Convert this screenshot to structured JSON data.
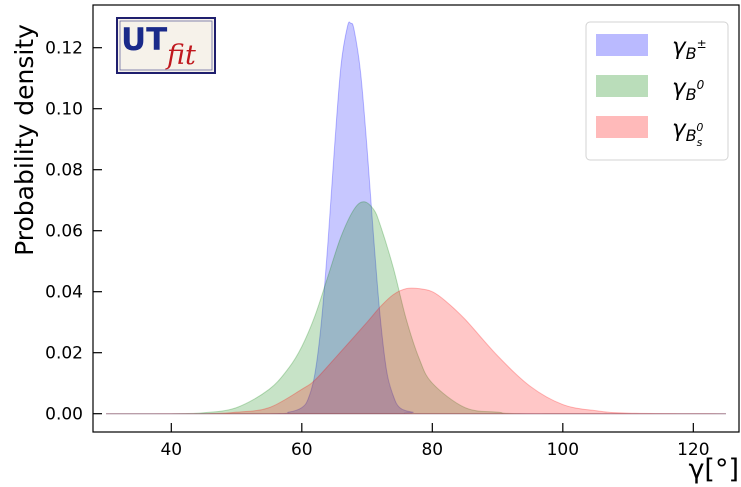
{
  "logo": {
    "text_main": "UT",
    "text_sub": "fit"
  },
  "chart_data": {
    "type": "area",
    "xlabel": "γ[°]",
    "ylabel": "Probability density",
    "xlim": [
      28,
      127
    ],
    "ylim": [
      -0.006,
      0.134
    ],
    "xticks": [
      40,
      60,
      80,
      100,
      120
    ],
    "yticks": [
      0.0,
      0.02,
      0.04,
      0.06,
      0.08,
      0.1,
      0.12
    ],
    "grid": false,
    "legend_position": "top-right",
    "series": [
      {
        "name": "γ_{B±}",
        "name_base": "γ",
        "name_sub": "B",
        "name_sup": "±",
        "color": "#0000ff",
        "fill_opacity": 0.22,
        "x": [
          30,
          55,
          58,
          60,
          61,
          62,
          63,
          64,
          65,
          66,
          67,
          67.5,
          68,
          69,
          70,
          71,
          72,
          73,
          74,
          75,
          77,
          80,
          125
        ],
        "y": [
          0,
          0,
          0.0005,
          0.002,
          0.005,
          0.013,
          0.03,
          0.056,
          0.087,
          0.114,
          0.127,
          0.128,
          0.126,
          0.112,
          0.087,
          0.058,
          0.032,
          0.014,
          0.006,
          0.002,
          0.0005,
          0,
          0
        ]
      },
      {
        "name": "γ_{B0}",
        "name_base": "γ",
        "name_sub": "B",
        "name_sup": "0",
        "color": "#008000",
        "fill_opacity": 0.22,
        "x": [
          30,
          40,
          45,
          50,
          55,
          58,
          60,
          62,
          64,
          66,
          68,
          69.5,
          71,
          72,
          74,
          76,
          78,
          80,
          85,
          90,
          95,
          125
        ],
        "y": [
          0,
          0,
          0.0003,
          0.002,
          0.008,
          0.015,
          0.022,
          0.032,
          0.045,
          0.058,
          0.067,
          0.0695,
          0.067,
          0.062,
          0.048,
          0.031,
          0.018,
          0.01,
          0.002,
          0.0005,
          0,
          0
        ]
      },
      {
        "name": "γ_{B0s}",
        "name_base": "γ",
        "name_sub": "B",
        "name_sup": "0",
        "name_subsub": "s",
        "color": "#ff0000",
        "fill_opacity": 0.22,
        "x": [
          30,
          45,
          50,
          55,
          60,
          62,
          65,
          70,
          72,
          74,
          76,
          78,
          80,
          82,
          85,
          90,
          95,
          100,
          105,
          110,
          125
        ],
        "y": [
          0,
          0,
          0.0005,
          0.002,
          0.008,
          0.011,
          0.018,
          0.03,
          0.035,
          0.039,
          0.041,
          0.041,
          0.04,
          0.037,
          0.031,
          0.019,
          0.009,
          0.003,
          0.001,
          0.0002,
          0
        ]
      }
    ]
  }
}
